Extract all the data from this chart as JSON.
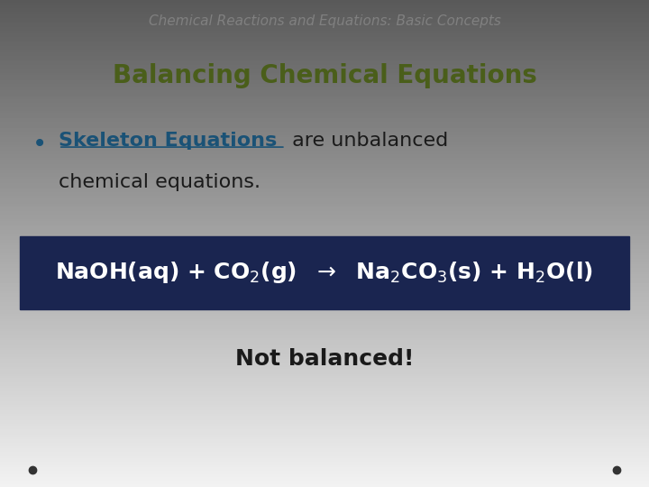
{
  "background_color": "#e0e0e0",
  "header_text": "Chemical Reactions and Equations: Basic Concepts",
  "header_color": "#808080",
  "header_fontsize": 11,
  "title_text": "Balancing Chemical Equations",
  "title_color": "#4a5e1a",
  "title_fontsize": 20,
  "bullet_keyword": "Skeleton Equations",
  "bullet_keyword_color": "#1a5276",
  "bullet_rest1": " are unbalanced",
  "bullet_rest2": "chemical equations.",
  "bullet_color": "#1a1a1a",
  "bullet_fontsize": 16,
  "equation_box_color": "#1a2550",
  "equation_text_color": "#ffffff",
  "equation_fontsize": 18,
  "not_balanced_text": "Not balanced!",
  "not_balanced_color": "#1a1a1a",
  "not_balanced_fontsize": 18,
  "dot_color": "#333333"
}
